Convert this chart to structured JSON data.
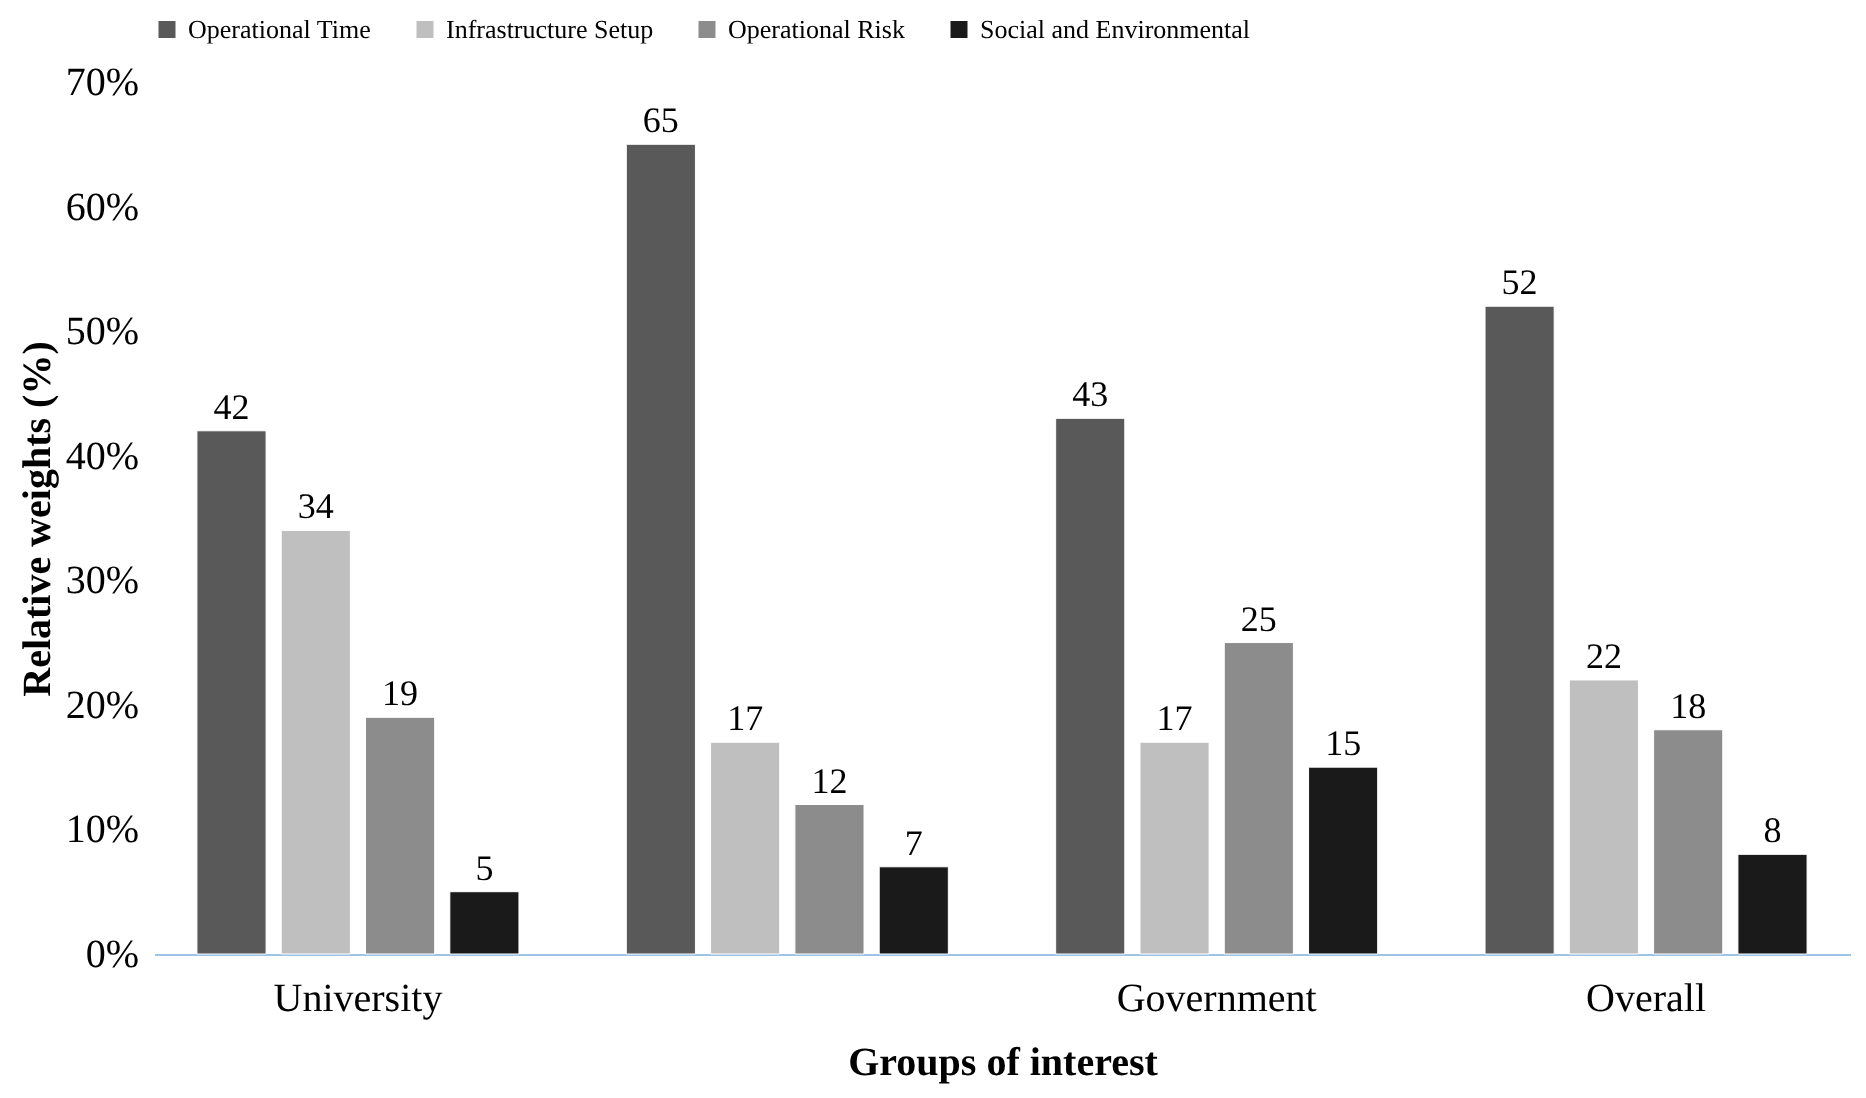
{
  "chart_data": {
    "type": "bar",
    "xlabel": "Groups of interest",
    "ylabel": "Relative weights (%)",
    "categories": [
      "University",
      null,
      "Government",
      "Overall"
    ],
    "series": [
      {
        "name": "Operational Time",
        "color": "#595959",
        "values": [
          42,
          65,
          43,
          52
        ]
      },
      {
        "name": "Infrastructure Setup",
        "color": "#bfbfbf",
        "values": [
          34,
          17,
          17,
          22
        ]
      },
      {
        "name": "Operational Risk",
        "color": "#8c8c8c",
        "values": [
          19,
          12,
          25,
          18
        ]
      },
      {
        "name": "Social and Environmental",
        "color": "#1a1a1a",
        "values": [
          5,
          7,
          15,
          8
        ]
      }
    ],
    "ylim": [
      0,
      70
    ],
    "yticks": [
      {
        "value": 0,
        "label": "0%"
      },
      {
        "value": 10,
        "label": "10%"
      },
      {
        "value": 20,
        "label": "20%"
      },
      {
        "value": 30,
        "label": "30%"
      },
      {
        "value": 40,
        "label": "40%"
      },
      {
        "value": 50,
        "label": "50%"
      },
      {
        "value": 60,
        "label": "60%"
      },
      {
        "value": 70,
        "label": "70%"
      }
    ],
    "data_labels": true,
    "legend": "top",
    "grid": false
  }
}
